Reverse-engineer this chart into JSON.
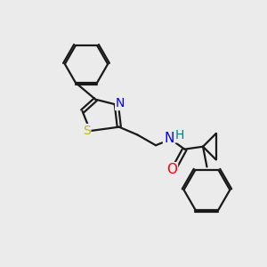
{
  "background_color": "#ebebeb",
  "bond_color": "#1a1a1a",
  "atom_colors": {
    "N": "#0000ff",
    "O": "#ff0000",
    "S": "#b8b800",
    "H": "#008080",
    "C": "#1a1a1a"
  },
  "bond_width": 1.6,
  "figsize": [
    3.0,
    3.0
  ],
  "dpi": 100,
  "xlim": [
    0,
    10
  ],
  "ylim": [
    0,
    10
  ]
}
